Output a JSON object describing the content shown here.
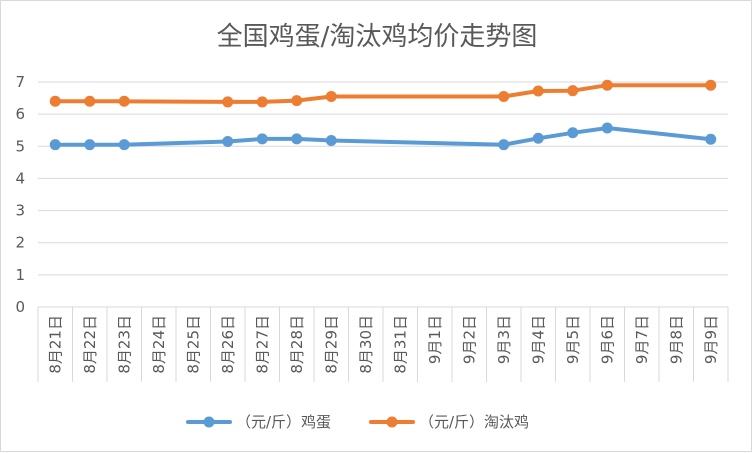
{
  "chart_data": {
    "type": "line",
    "title": "全国鸡蛋/淘汰鸡均价走势图",
    "xlabel": "",
    "ylabel": "",
    "categories": [
      "8月21日",
      "8月22日",
      "8月23日",
      "8月24日",
      "8月25日",
      "8月26日",
      "8月27日",
      "8月28日",
      "8月29日",
      "8月30日",
      "8月31日",
      "9月1日",
      "9月2日",
      "9月3日",
      "9月4日",
      "9月5日",
      "9月6日",
      "9月7日",
      "9月8日",
      "9月9日"
    ],
    "y_ticks": [
      "0",
      "1",
      "2",
      "3",
      "4",
      "5",
      "6",
      "7"
    ],
    "ylim": [
      0,
      7
    ],
    "grid": true,
    "legend_position": "bottom",
    "series": [
      {
        "name": "（元/斤）鸡蛋",
        "color": "#5b9bd5",
        "values": [
          5.05,
          5.05,
          5.05,
          null,
          null,
          5.15,
          5.23,
          5.23,
          5.18,
          null,
          null,
          null,
          null,
          5.05,
          5.25,
          5.42,
          5.57,
          null,
          null,
          5.22
        ]
      },
      {
        "name": "（元/斤）淘汰鸡",
        "color": "#ed7d31",
        "values": [
          6.4,
          6.4,
          6.4,
          null,
          null,
          6.38,
          6.38,
          6.42,
          6.55,
          null,
          null,
          null,
          null,
          6.55,
          6.72,
          6.73,
          6.9,
          null,
          null,
          6.9
        ]
      }
    ]
  }
}
